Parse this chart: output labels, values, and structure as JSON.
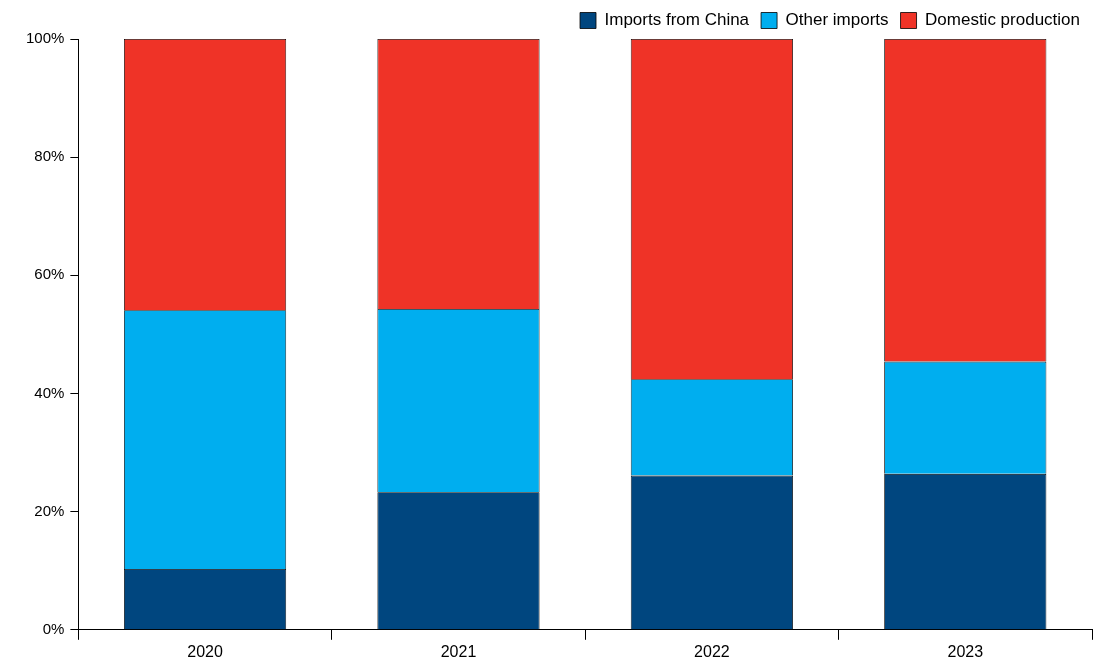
{
  "chart_data": {
    "type": "bar",
    "stacked": true,
    "categories": [
      "2020",
      "2021",
      "2022",
      "2023"
    ],
    "series": [
      {
        "name": "Imports from China",
        "color": "#00467f",
        "values": [
          10.3,
          23.3,
          26.1,
          26.4
        ]
      },
      {
        "name": "Other imports",
        "color": "#00aeef",
        "values": [
          43.8,
          31.0,
          16.3,
          19.0
        ]
      },
      {
        "name": "Domestic production",
        "color": "#ef3327",
        "values": [
          45.9,
          45.7,
          57.6,
          54.6
        ]
      }
    ],
    "ylim": [
      0,
      100
    ],
    "yticks": [
      {
        "value": 0,
        "label": "0%"
      },
      {
        "value": 20,
        "label": "20%"
      },
      {
        "value": 40,
        "label": "40%"
      },
      {
        "value": 60,
        "label": "60%"
      },
      {
        "value": 80,
        "label": "80%"
      },
      {
        "value": 100,
        "label": "100%"
      }
    ],
    "grid": false,
    "legend": "top right"
  }
}
